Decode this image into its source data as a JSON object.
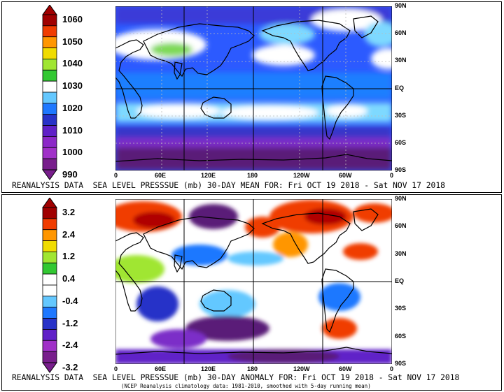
{
  "top": {
    "title": "REANALYSIS DATA  SEA LEVEL PRESSSUE (mb) 30-DAY MEAN FOR: Fri OCT 19 2018 - Sat NOV 17 2018",
    "colorbar": {
      "labels": [
        "1060",
        "1050",
        "1040",
        "1030",
        "1020",
        "1010",
        "1000",
        "990"
      ],
      "colors": [
        "#a00000",
        "#f03c00",
        "#ff9600",
        "#f0dc00",
        "#a0e632",
        "#32c832",
        "#ffffff",
        "#64c8ff",
        "#1e78ff",
        "#2832c8",
        "#6020c8",
        "#8c28c8",
        "#a030c8",
        "#781e8c"
      ]
    }
  },
  "bottom": {
    "title": "REANALYSIS DATA  SEA LEVEL PRESSSUE (mb) 30-DAY ANOMALY FOR: Fri OCT 19 2018 - Sat NOV 17 2018",
    "note": "(NCEP Reanalysis climatology data: 1981-2010, smoothed with 5-day running mean)",
    "colorbar": {
      "labels": [
        "3.2",
        "2.4",
        "1.2",
        "0.4",
        "-0.4",
        "-1.2",
        "-2.4",
        "-3.2"
      ],
      "colors": [
        "#a00000",
        "#f03c00",
        "#ff9600",
        "#f0dc00",
        "#a0e632",
        "#32c832",
        "#ffffff",
        "#ffffff",
        "#64c8ff",
        "#1e78ff",
        "#2832c8",
        "#6020c8",
        "#a030c8",
        "#781e8c"
      ]
    }
  },
  "lon_labels": [
    "0",
    "60E",
    "120E",
    "180",
    "120W",
    "60W",
    "0"
  ],
  "lat_labels": [
    "90N",
    "60N",
    "30N",
    "EQ",
    "30S",
    "60S",
    "90S"
  ]
}
